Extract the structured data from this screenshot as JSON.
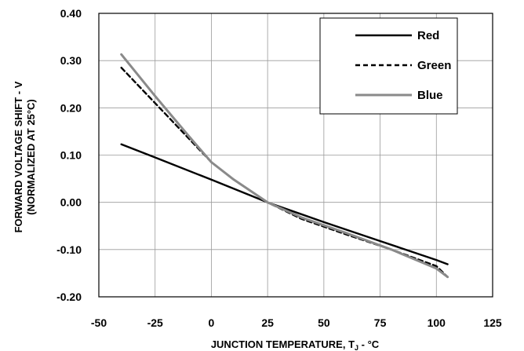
{
  "chart_data": {
    "type": "line",
    "xlabel_main": "JUNCTION TEMPERATURE, T",
    "xlabel_sub": "J",
    "xlabel_tail": " - °C",
    "ylabel_line1": "FORWARD VOLTAGE SHIFT - V",
    "ylabel_line2": "(NORMALIZED AT 25°C)",
    "xlim": [
      -50,
      125
    ],
    "ylim": [
      -0.2,
      0.4
    ],
    "x_ticks": [
      "-50",
      "-25",
      "0",
      "25",
      "50",
      "75",
      "100",
      "125"
    ],
    "y_ticks": [
      "0.40",
      "0.30",
      "0.20",
      "0.10",
      "0.00",
      "-0.10",
      "-0.20"
    ],
    "grid": true,
    "legend_position": "top-right",
    "series": [
      {
        "name": "Red",
        "color": "#000000",
        "style": "solid",
        "x": [
          -40,
          -25,
          0,
          25,
          50,
          75,
          100,
          105
        ],
        "y": [
          0.123,
          0.095,
          0.048,
          0.0,
          -0.042,
          -0.082,
          -0.122,
          -0.131
        ]
      },
      {
        "name": "Green",
        "color": "#000000",
        "style": "dashed",
        "x": [
          -40,
          -25,
          -10,
          0,
          10,
          25,
          40,
          60,
          80,
          100,
          105
        ],
        "y": [
          0.285,
          0.21,
          0.135,
          0.085,
          0.048,
          0.0,
          -0.035,
          -0.068,
          -0.1,
          -0.135,
          -0.158
        ]
      },
      {
        "name": "Blue",
        "color": "#8a8a8a",
        "style": "solid",
        "x": [
          -40,
          -25,
          -10,
          0,
          10,
          25,
          40,
          60,
          80,
          100,
          105
        ],
        "y": [
          0.313,
          0.225,
          0.14,
          0.085,
          0.048,
          0.0,
          -0.032,
          -0.065,
          -0.1,
          -0.14,
          -0.158
        ]
      }
    ]
  }
}
